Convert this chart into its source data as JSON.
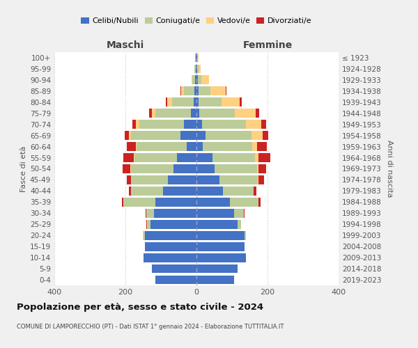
{
  "age_groups": [
    "0-4",
    "5-9",
    "10-14",
    "15-19",
    "20-24",
    "25-29",
    "30-34",
    "35-39",
    "40-44",
    "45-49",
    "50-54",
    "55-59",
    "60-64",
    "65-69",
    "70-74",
    "75-79",
    "80-84",
    "85-89",
    "90-94",
    "95-99",
    "100+"
  ],
  "birth_years": [
    "2019-2023",
    "2014-2018",
    "2009-2013",
    "2004-2008",
    "1999-2003",
    "1994-1998",
    "1989-1993",
    "1984-1988",
    "1979-1983",
    "1974-1978",
    "1969-1973",
    "1964-1968",
    "1959-1963",
    "1954-1958",
    "1949-1953",
    "1944-1948",
    "1939-1943",
    "1934-1938",
    "1929-1933",
    "1924-1928",
    "≤ 1923"
  ],
  "maschi": {
    "celibi": [
      115,
      125,
      150,
      145,
      145,
      130,
      120,
      115,
      95,
      80,
      65,
      55,
      28,
      45,
      35,
      15,
      8,
      5,
      3,
      2,
      2
    ],
    "coniugati": [
      0,
      0,
      0,
      1,
      4,
      8,
      22,
      90,
      90,
      105,
      120,
      120,
      140,
      140,
      125,
      100,
      60,
      30,
      8,
      3,
      1
    ],
    "vedovi": [
      0,
      0,
      0,
      0,
      2,
      1,
      0,
      0,
      0,
      0,
      1,
      2,
      3,
      5,
      10,
      10,
      15,
      8,
      3,
      1,
      0
    ],
    "divorziati": [
      0,
      0,
      0,
      0,
      0,
      2,
      2,
      5,
      5,
      12,
      22,
      28,
      25,
      12,
      10,
      8,
      4,
      2,
      0,
      0,
      0
    ]
  },
  "femmine": {
    "nubili": [
      105,
      115,
      140,
      135,
      135,
      115,
      105,
      95,
      75,
      65,
      50,
      45,
      18,
      25,
      15,
      8,
      5,
      5,
      3,
      2,
      2
    ],
    "coniugate": [
      0,
      0,
      0,
      1,
      4,
      10,
      28,
      80,
      85,
      108,
      120,
      120,
      138,
      130,
      125,
      100,
      65,
      35,
      10,
      3,
      1
    ],
    "vedove": [
      0,
      0,
      0,
      0,
      0,
      0,
      0,
      0,
      1,
      2,
      5,
      10,
      15,
      32,
      42,
      58,
      52,
      42,
      22,
      6,
      3
    ],
    "divorziate": [
      0,
      0,
      0,
      0,
      0,
      0,
      2,
      5,
      8,
      16,
      22,
      32,
      28,
      15,
      15,
      10,
      5,
      2,
      0,
      0,
      0
    ]
  },
  "colors": {
    "celibi": "#4472C4",
    "coniugati": "#BBCC99",
    "vedovi": "#FFD080",
    "divorziati": "#CC2222"
  },
  "title": "Popolazione per età, sesso e stato civile - 2024",
  "subtitle": "COMUNE DI LAMPORECCHIO (PT) - Dati ISTAT 1° gennaio 2024 - Elaborazione TUTTITALIA.IT",
  "label_maschi": "Maschi",
  "label_femmine": "Femmine",
  "ylabel_left": "Fasce di età",
  "ylabel_right": "Anni di nascita",
  "xlim": 400,
  "xticks": [
    -400,
    -200,
    0,
    200,
    400
  ],
  "xticklabels": [
    "400",
    "200",
    "0",
    "200",
    "400"
  ],
  "legend_labels": [
    "Celibi/Nubili",
    "Coniugati/e",
    "Vedovi/e",
    "Divorziati/e"
  ],
  "bg_color": "#f0f0f0",
  "plot_bg": "#ffffff",
  "grid_color": "#cccccc"
}
